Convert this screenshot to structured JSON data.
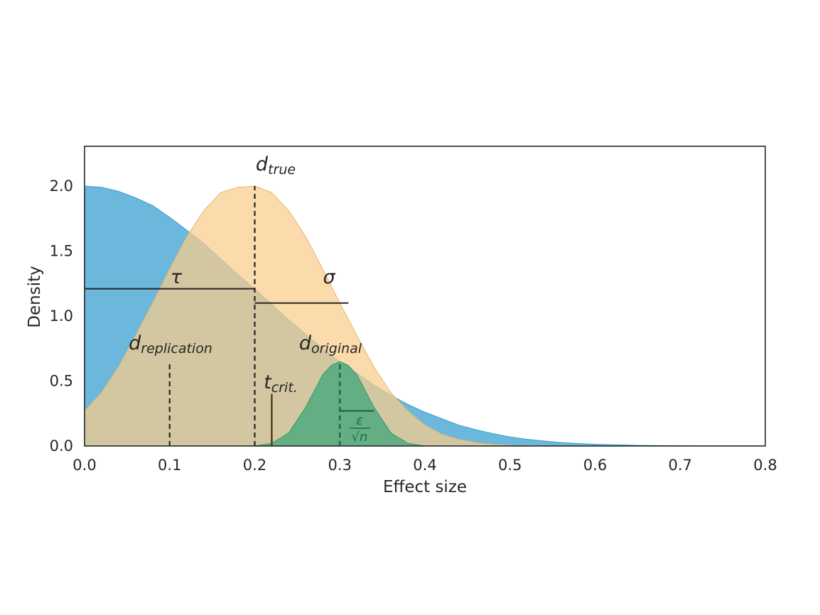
{
  "chart_data": {
    "type": "area",
    "title": "",
    "xlabel": "Effect size",
    "ylabel": "Density",
    "xlim": [
      0.0,
      0.8
    ],
    "ylim": [
      0.0,
      2.3
    ],
    "xticks": [
      "0.0",
      "0.1",
      "0.2",
      "0.3",
      "0.4",
      "0.5",
      "0.6",
      "0.7",
      "0.8"
    ],
    "yticks": [
      "0.0",
      "0.5",
      "1.0",
      "1.5",
      "2.0"
    ],
    "grid": false,
    "series": [
      {
        "color": "#6bb8dc",
        "edge": "#3a9fd0",
        "opacity": 1.0,
        "x": [
          0.0,
          0.02,
          0.04,
          0.06,
          0.08,
          0.1,
          0.12,
          0.14,
          0.16,
          0.18,
          0.2,
          0.22,
          0.24,
          0.26,
          0.28,
          0.3,
          0.32,
          0.34,
          0.36,
          0.38,
          0.4,
          0.42,
          0.44,
          0.46,
          0.48,
          0.5,
          0.52,
          0.54,
          0.56,
          0.58,
          0.6,
          0.65,
          0.7,
          0.75,
          0.8
        ],
        "values": [
          2.0,
          1.99,
          1.96,
          1.91,
          1.85,
          1.76,
          1.66,
          1.56,
          1.44,
          1.32,
          1.21,
          1.09,
          0.97,
          0.86,
          0.75,
          0.65,
          0.56,
          0.47,
          0.39,
          0.32,
          0.26,
          0.21,
          0.16,
          0.125,
          0.095,
          0.07,
          0.052,
          0.038,
          0.027,
          0.019,
          0.013,
          0.005,
          0.002,
          0.0005,
          0.0
        ]
      },
      {
        "color": "#f9cd8a",
        "edge": "#e8b66a",
        "opacity": 0.72,
        "x": [
          0.0,
          0.02,
          0.04,
          0.06,
          0.08,
          0.1,
          0.12,
          0.14,
          0.16,
          0.18,
          0.2,
          0.22,
          0.24,
          0.26,
          0.28,
          0.3,
          0.32,
          0.34,
          0.36,
          0.38,
          0.4,
          0.42,
          0.44,
          0.46,
          0.48,
          0.5,
          0.55,
          0.6
        ],
        "values": [
          0.27,
          0.41,
          0.61,
          0.85,
          1.1,
          1.36,
          1.61,
          1.81,
          1.95,
          1.99,
          2.0,
          1.95,
          1.81,
          1.61,
          1.36,
          1.1,
          0.85,
          0.61,
          0.41,
          0.27,
          0.16,
          0.09,
          0.05,
          0.025,
          0.012,
          0.005,
          0.001,
          0.0
        ]
      },
      {
        "color": "#3da57a",
        "edge": "#2e9a6c",
        "opacity": 0.75,
        "x": [
          0.2,
          0.22,
          0.24,
          0.26,
          0.28,
          0.29,
          0.3,
          0.31,
          0.32,
          0.34,
          0.36,
          0.38,
          0.4
        ],
        "values": [
          0.0,
          0.02,
          0.1,
          0.3,
          0.55,
          0.62,
          0.65,
          0.62,
          0.55,
          0.3,
          0.1,
          0.02,
          0.0
        ]
      }
    ],
    "annotations": {
      "d_true": {
        "x": 0.2,
        "y": 2.0,
        "base": "d",
        "sub": "true"
      },
      "d_replication": {
        "x": 0.1,
        "y": 0.65,
        "base": "d",
        "sub": "replication"
      },
      "d_original": {
        "x": 0.3,
        "y": 0.65,
        "base": "d",
        "sub": "original"
      },
      "t_crit": {
        "x": 0.22,
        "y": 0.4,
        "base": "t",
        "sub": "crit."
      },
      "tau": {
        "symbol": "τ",
        "x0": 0.0,
        "x1": 0.2,
        "y": 1.21
      },
      "sigma": {
        "symbol": "σ",
        "x0": 0.2,
        "x1": 0.31,
        "y": 1.1
      },
      "epsilon": {
        "num": "ε",
        "den": "√n",
        "x0": 0.3,
        "x1": 0.34,
        "y": 0.27
      }
    }
  }
}
